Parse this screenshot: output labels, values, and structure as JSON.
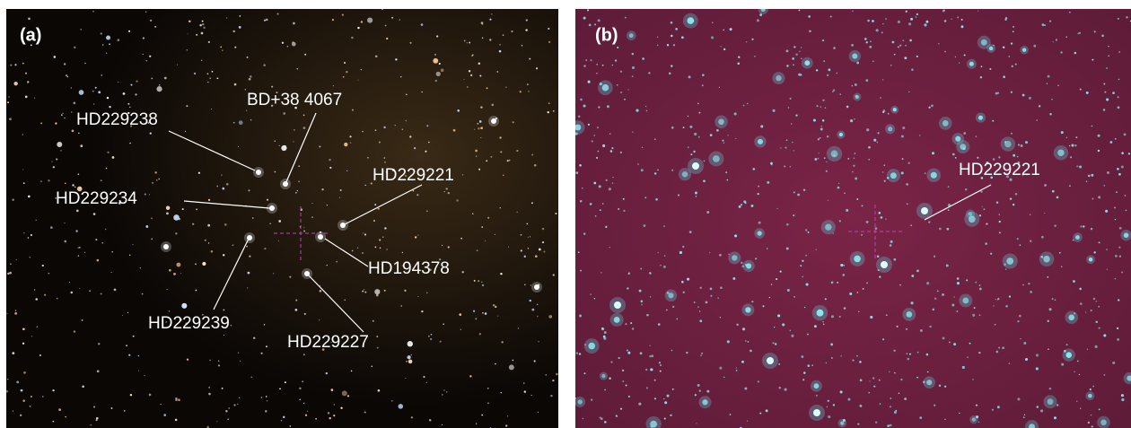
{
  "panels": [
    {
      "label": "(a)",
      "annotations": [
        "HD229238",
        "BD+38 4067",
        "HD229234",
        "HD229221",
        "HD194378",
        "HD229239",
        "HD229227"
      ]
    },
    {
      "label": "(b)",
      "annotations": [
        "HD229221"
      ]
    }
  ]
}
